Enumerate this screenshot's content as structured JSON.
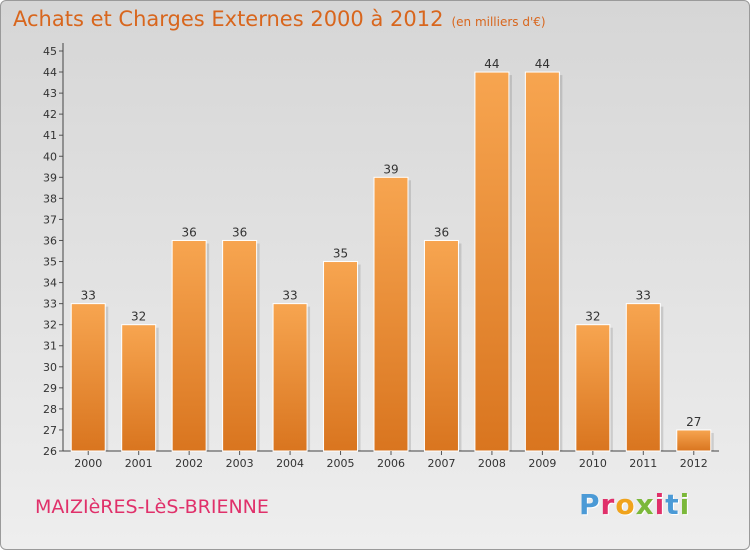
{
  "header": {
    "title": "Achats et Charges Externes 2000 à 2012",
    "unit": "(en milliers d'€)"
  },
  "footer": {
    "commune": "MAIZIèRES-LèS-BRIENNE",
    "brand_letters": [
      "P",
      "r",
      "o",
      "x",
      "i",
      "t",
      "i"
    ]
  },
  "colors": {
    "bar_top": "#f7a550",
    "bar_bottom": "#d9751f",
    "title": "#d8661d",
    "commune": "#e0306a",
    "brand": [
      "#4b9ad6",
      "#e0306a",
      "#f0a31c",
      "#7bb83a",
      "#e0306a",
      "#4b9ad6",
      "#7bb83a"
    ]
  },
  "chart_data": {
    "type": "bar",
    "categories": [
      "2000",
      "2001",
      "2002",
      "2003",
      "2004",
      "2005",
      "2006",
      "2007",
      "2008",
      "2009",
      "2010",
      "2011",
      "2012"
    ],
    "values": [
      33,
      32,
      36,
      36,
      33,
      35,
      39,
      36,
      44,
      44,
      32,
      33,
      27
    ],
    "ylim": [
      26,
      45
    ],
    "ytick_step": 1,
    "grid": false,
    "data_labels": true
  }
}
